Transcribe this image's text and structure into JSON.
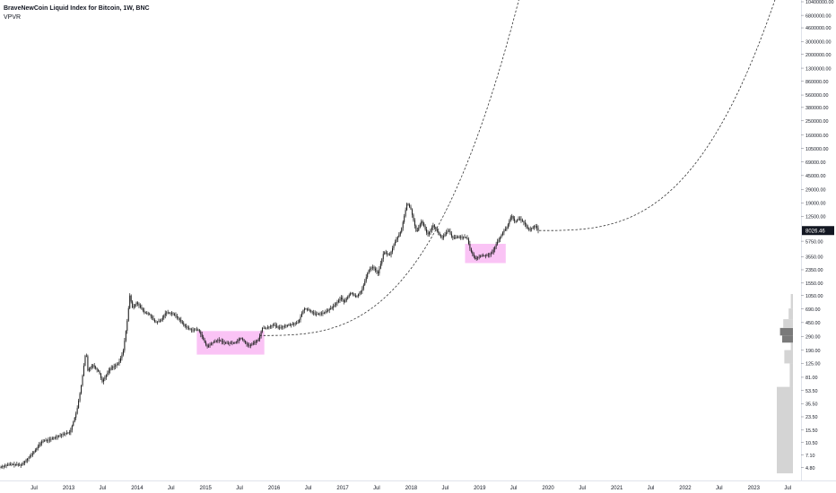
{
  "header": {
    "title": "BraveNewCoin Liquid Index for Bitcoin, 1W, BNC",
    "indicator": "VPVR"
  },
  "colors": {
    "candle": "#1a1a1a",
    "highlight": "#f9b8f3",
    "curve": "#333333",
    "vpvr_light": "#cfcfcf",
    "vpvr_dark": "#6b6b6b",
    "price_tag_bg": "#131722",
    "price_tag_text": "#ffffff"
  },
  "chart_data": {
    "type": "candlestick",
    "y_scale": "log",
    "ylim": [
      3.2,
      11000000
    ],
    "x_range": [
      "2012-01-01",
      "2023-09-10"
    ],
    "y_ticks": [
      "10400000.00",
      "6800000.00",
      "4600000.00",
      "3000000.00",
      "2000000.00",
      "1300000.00",
      "860000.00",
      "560000.00",
      "380000.00",
      "250000.00",
      "160000.00",
      "105000.00",
      "69000.00",
      "45000.00",
      "29000.00",
      "19000.00",
      "12500.00",
      "8026.46",
      "5750.00",
      "3550.00",
      "2350.00",
      "1550.00",
      "1050.00",
      "690.00",
      "450.00",
      "290.00",
      "190.00",
      "125.00",
      "81.00",
      "53.50",
      "35.50",
      "23.50",
      "15.50",
      "10.50",
      "7.10",
      "4.80"
    ],
    "x_ticks": [
      {
        "date": "2012-07-01",
        "label": "Jul"
      },
      {
        "date": "2013-01-01",
        "label": "2013"
      },
      {
        "date": "2013-07-01",
        "label": "Jul"
      },
      {
        "date": "2014-01-01",
        "label": "2014"
      },
      {
        "date": "2014-07-01",
        "label": "Jul"
      },
      {
        "date": "2015-01-01",
        "label": "2015"
      },
      {
        "date": "2015-07-01",
        "label": "Jul"
      },
      {
        "date": "2016-01-01",
        "label": "2016"
      },
      {
        "date": "2016-07-01",
        "label": "Jul"
      },
      {
        "date": "2017-01-01",
        "label": "2017"
      },
      {
        "date": "2017-07-01",
        "label": "Jul"
      },
      {
        "date": "2018-01-01",
        "label": "2018"
      },
      {
        "date": "2018-07-01",
        "label": "Jul"
      },
      {
        "date": "2019-01-01",
        "label": "2019"
      },
      {
        "date": "2019-07-01",
        "label": "Jul"
      },
      {
        "date": "2020-01-01",
        "label": "2020"
      },
      {
        "date": "2020-07-01",
        "label": "Jul"
      },
      {
        "date": "2021-01-01",
        "label": "2021"
      },
      {
        "date": "2021-07-01",
        "label": "Jul"
      },
      {
        "date": "2022-01-01",
        "label": "2022"
      },
      {
        "date": "2022-07-01",
        "label": "Jul"
      },
      {
        "date": "2023-01-01",
        "label": "2023"
      },
      {
        "date": "2023-07-01",
        "label": "Jul"
      }
    ],
    "last_price": 8026.46,
    "price_path": [
      [
        "2011-12-31",
        4.8
      ],
      [
        "2012-03-01",
        5.3
      ],
      [
        "2012-05-01",
        5.2
      ],
      [
        "2012-07-01",
        7.5
      ],
      [
        "2012-08-20",
        11
      ],
      [
        "2012-10-01",
        11.5
      ],
      [
        "2012-12-01",
        13.5
      ],
      [
        "2013-01-15",
        14.5
      ],
      [
        "2013-02-20",
        28
      ],
      [
        "2013-03-15",
        60
      ],
      [
        "2013-04-10",
        190
      ],
      [
        "2013-04-20",
        100
      ],
      [
        "2013-05-15",
        120
      ],
      [
        "2013-06-20",
        95
      ],
      [
        "2013-07-05",
        70
      ],
      [
        "2013-08-15",
        105
      ],
      [
        "2013-10-01",
        125
      ],
      [
        "2013-10-25",
        180
      ],
      [
        "2013-11-15",
        450
      ],
      [
        "2013-11-30",
        1050
      ],
      [
        "2013-12-15",
        700
      ],
      [
        "2014-01-05",
        850
      ],
      [
        "2014-02-15",
        620
      ],
      [
        "2014-03-15",
        580
      ],
      [
        "2014-04-15",
        450
      ],
      [
        "2014-05-15",
        480
      ],
      [
        "2014-06-10",
        620
      ],
      [
        "2014-07-15",
        600
      ],
      [
        "2014-08-20",
        500
      ],
      [
        "2014-09-20",
        400
      ],
      [
        "2014-10-20",
        360
      ],
      [
        "2014-12-01",
        360
      ],
      [
        "2015-01-15",
        210
      ],
      [
        "2015-02-15",
        240
      ],
      [
        "2015-03-15",
        260
      ],
      [
        "2015-05-01",
        235
      ],
      [
        "2015-06-15",
        240
      ],
      [
        "2015-07-15",
        280
      ],
      [
        "2015-08-25",
        215
      ],
      [
        "2015-09-20",
        235
      ],
      [
        "2015-10-20",
        270
      ],
      [
        "2015-11-05",
        380
      ],
      [
        "2015-12-01",
        380
      ],
      [
        "2016-01-05",
        420
      ],
      [
        "2016-02-01",
        380
      ],
      [
        "2016-03-15",
        410
      ],
      [
        "2016-05-15",
        450
      ],
      [
        "2016-06-15",
        700
      ],
      [
        "2016-07-15",
        660
      ],
      [
        "2016-08-15",
        580
      ],
      [
        "2016-10-01",
        610
      ],
      [
        "2016-11-15",
        730
      ],
      [
        "2016-12-31",
        980
      ],
      [
        "2017-01-15",
        850
      ],
      [
        "2017-02-20",
        1150
      ],
      [
        "2017-03-20",
        1000
      ],
      [
        "2017-04-20",
        1250
      ],
      [
        "2017-05-25",
        2300
      ],
      [
        "2017-06-15",
        2600
      ],
      [
        "2017-07-15",
        2100
      ],
      [
        "2017-08-15",
        4100
      ],
      [
        "2017-09-15",
        3700
      ],
      [
        "2017-10-15",
        5700
      ],
      [
        "2017-11-15",
        8000
      ],
      [
        "2017-12-17",
        19000
      ],
      [
        "2018-01-05",
        16000
      ],
      [
        "2018-02-05",
        7500
      ],
      [
        "2018-03-05",
        11000
      ],
      [
        "2018-04-05",
        7000
      ],
      [
        "2018-05-05",
        9500
      ],
      [
        "2018-06-20",
        6300
      ],
      [
        "2018-07-25",
        8200
      ],
      [
        "2018-08-15",
        6400
      ],
      [
        "2018-10-01",
        6600
      ],
      [
        "2018-11-01",
        6400
      ],
      [
        "2018-11-20",
        4300
      ],
      [
        "2018-12-15",
        3300
      ],
      [
        "2019-01-15",
        3650
      ],
      [
        "2019-02-15",
        3700
      ],
      [
        "2019-03-15",
        4000
      ],
      [
        "2019-04-05",
        5200
      ],
      [
        "2019-05-15",
        7900
      ],
      [
        "2019-06-01",
        8700
      ],
      [
        "2019-06-26",
        13000
      ],
      [
        "2019-07-15",
        10500
      ],
      [
        "2019-08-05",
        11800
      ],
      [
        "2019-09-01",
        10300
      ],
      [
        "2019-09-26",
        8200
      ],
      [
        "2019-10-10",
        8500
      ],
      [
        "2019-10-26",
        9200
      ],
      [
        "2019-11-05",
        9300
      ],
      [
        "2019-11-14",
        8026
      ]
    ],
    "boxes": [
      {
        "from": "2014-11-15",
        "to": "2015-11-10",
        "low": 165,
        "high": 345
      },
      {
        "from": "2018-10-15",
        "to": "2019-05-20",
        "low": 2900,
        "high": 5300
      }
    ],
    "curves": [
      {
        "anchor_date": "2015-10-15",
        "anchor_price": 300,
        "end_date": "2019-11-14",
        "end_price": 160000000
      },
      {
        "anchor_date": "2019-11-14",
        "anchor_price": 8026,
        "end_date": "2023-09-10",
        "end_price": 160000000
      }
    ],
    "vpvr": [
      {
        "low": 4,
        "high": 60,
        "volume": 0.15,
        "dark": false
      },
      {
        "low": 60,
        "high": 125,
        "volume": 0.03,
        "dark": false
      },
      {
        "low": 125,
        "high": 190,
        "volume": 0.08,
        "dark": false
      },
      {
        "low": 190,
        "high": 240,
        "volume": 0.02,
        "dark": false
      },
      {
        "low": 240,
        "high": 300,
        "volume": 0.1,
        "dark": true
      },
      {
        "low": 300,
        "high": 380,
        "volume": 0.12,
        "dark": true
      },
      {
        "low": 380,
        "high": 500,
        "volume": 0.09,
        "dark": false
      },
      {
        "low": 500,
        "high": 700,
        "volume": 0.04,
        "dark": false
      },
      {
        "low": 700,
        "high": 1100,
        "volume": 0.02,
        "dark": false
      }
    ]
  }
}
